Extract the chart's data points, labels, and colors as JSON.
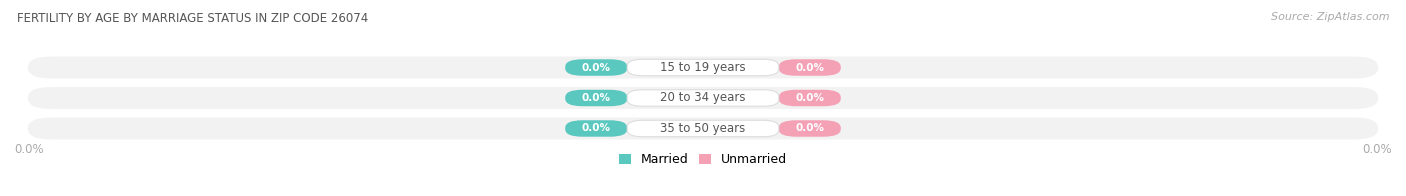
{
  "title": "FERTILITY BY AGE BY MARRIAGE STATUS IN ZIP CODE 26074",
  "source": "Source: ZipAtlas.com",
  "categories": [
    "15 to 19 years",
    "20 to 34 years",
    "35 to 50 years"
  ],
  "married_values": [
    0.0,
    0.0,
    0.0
  ],
  "unmarried_values": [
    0.0,
    0.0,
    0.0
  ],
  "married_color": "#5BC8C0",
  "unmarried_color": "#F4A0B5",
  "bar_bg_color": "#F2F2F2",
  "category_text_color": "#555555",
  "title_color": "#555555",
  "source_color": "#aaaaaa",
  "axis_label_color": "#aaaaaa",
  "axis_label_left": "0.0%",
  "axis_label_right": "0.0%",
  "background_color": "#ffffff",
  "fig_width": 14.06,
  "fig_height": 1.96,
  "dpi": 100
}
